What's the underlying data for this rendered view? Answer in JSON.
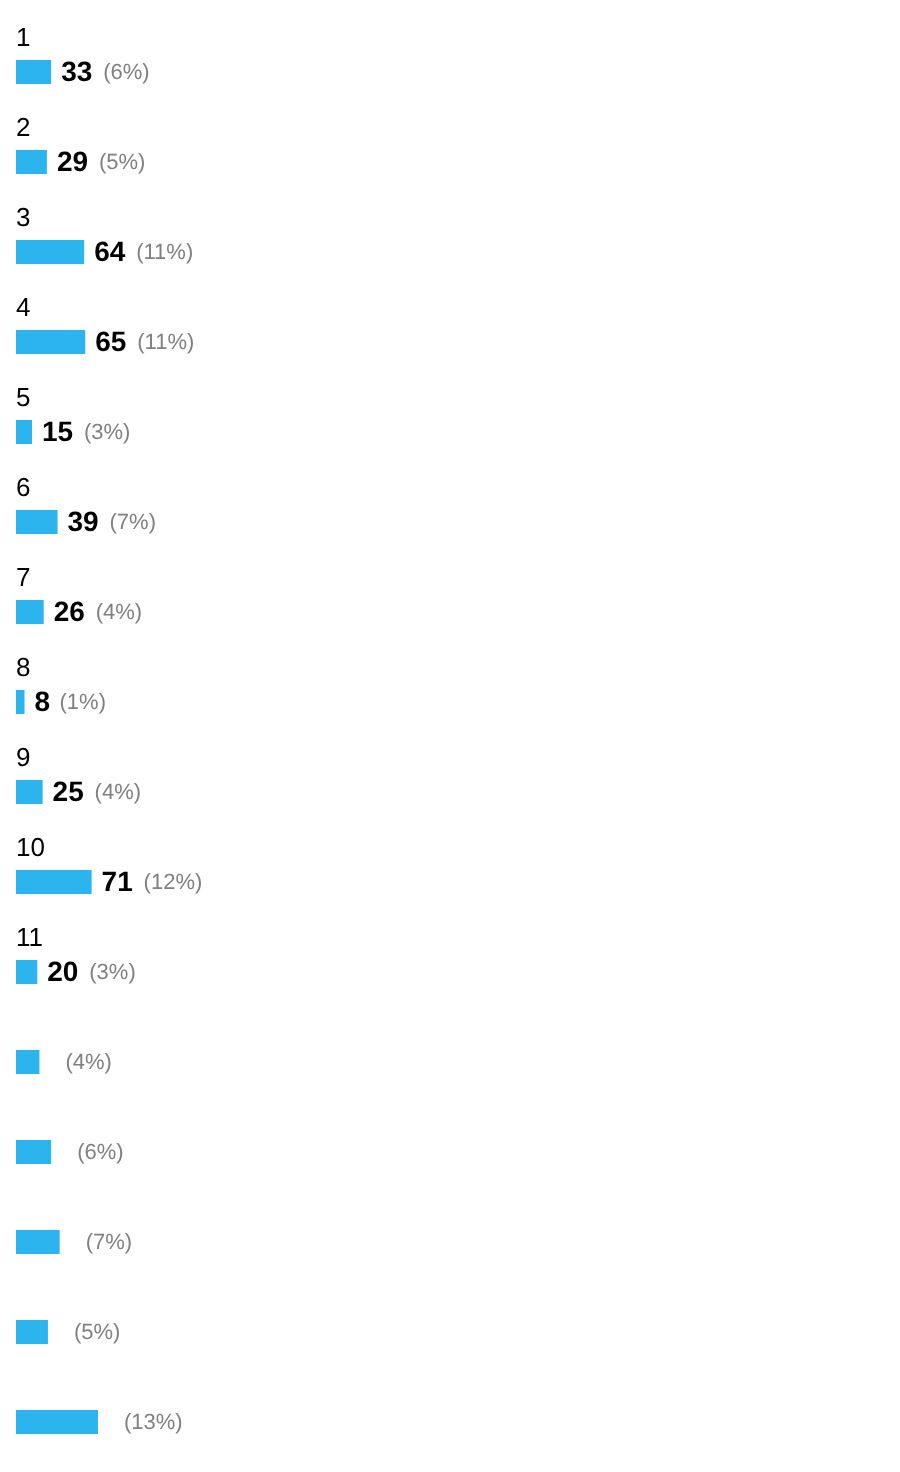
{
  "chart_data": {
    "type": "bar",
    "orientation": "horizontal",
    "categories": [
      "1",
      "2",
      "3",
      "4",
      "5",
      "6",
      "7",
      "8",
      "9",
      "10",
      "11",
      null,
      null,
      null,
      null,
      null
    ],
    "values": [
      33,
      29,
      64,
      65,
      15,
      39,
      26,
      8,
      25,
      71,
      20,
      22,
      33,
      41,
      30,
      77
    ],
    "value_labels": [
      "33",
      "29",
      "64",
      "65",
      "15",
      "39",
      "26",
      "8",
      "25",
      "71",
      "20",
      null,
      null,
      null,
      null,
      null
    ],
    "annotations": [
      {
        "text": "(6%)",
        "x": 33,
        "y": "1"
      },
      {
        "text": "(5%)",
        "x": 29,
        "y": "2"
      },
      {
        "text": "(11%)",
        "x": 64,
        "y": "3"
      },
      {
        "text": "(11%)",
        "x": 65,
        "y": "4"
      },
      {
        "text": "(3%)",
        "x": 15,
        "y": "5"
      },
      {
        "text": "(7%)",
        "x": 39,
        "y": "6"
      },
      {
        "text": "(4%)",
        "x": 26,
        "y": "7"
      },
      {
        "text": "(1%)",
        "x": 8,
        "y": "8"
      },
      {
        "text": "(4%)",
        "x": 25,
        "y": "9"
      },
      {
        "text": "(12%)",
        "x": 71,
        "y": "10"
      },
      {
        "text": "(3%)",
        "x": 20,
        "y": "11"
      },
      {
        "text": "(4%)",
        "x": 22
      },
      {
        "text": "(6%)",
        "x": 33
      },
      {
        "text": "(7%)",
        "x": 41
      },
      {
        "text": "(5%)",
        "x": 30
      },
      {
        "text": "(13%)",
        "x": 77
      }
    ],
    "color": "#2cb4ee"
  }
}
